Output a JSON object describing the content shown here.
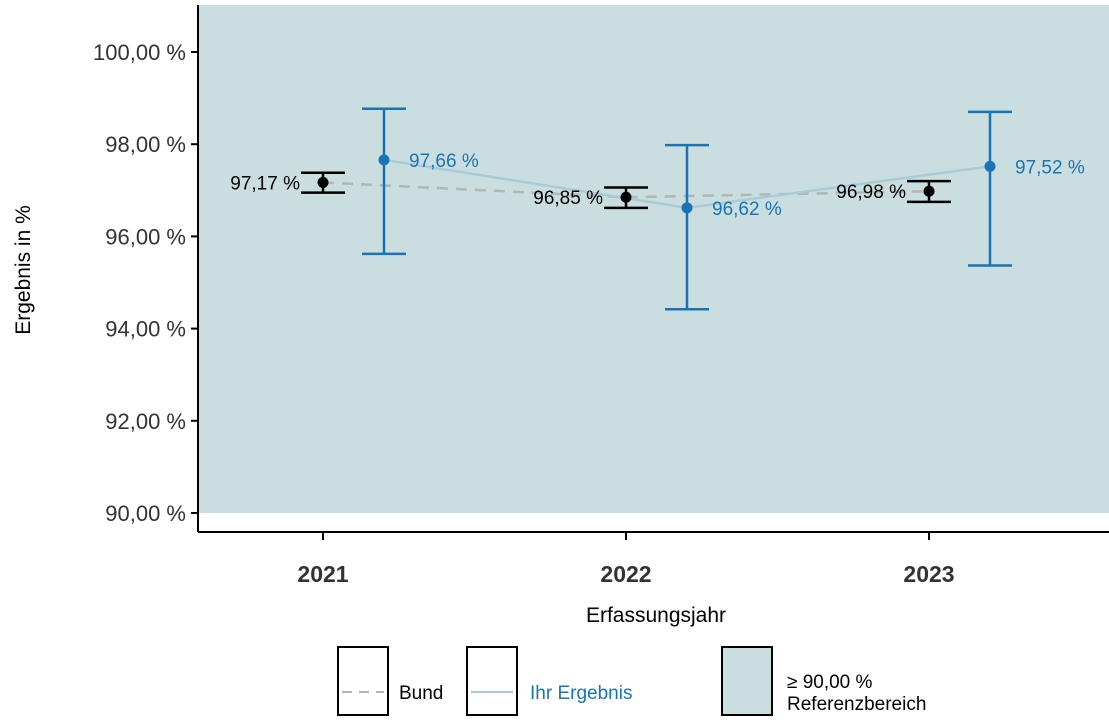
{
  "chart_data": {
    "type": "line",
    "xlabel": "Erfassungsjahr",
    "ylabel": "Ergebnis in %",
    "categories": [
      "2021",
      "2022",
      "2023"
    ],
    "ylim": [
      90,
      101
    ],
    "yticks": [
      90,
      92,
      94,
      96,
      98,
      100
    ],
    "ytick_labels": [
      "90,00 %",
      "92,00 %",
      "94,00 %",
      "96,00 %",
      "98,00 %",
      "100,00 %"
    ],
    "reference_range": {
      "min": 90,
      "label": "≥  90,00  %",
      "caption": "Referenzbereich",
      "color": "#cadedf"
    },
    "series": [
      {
        "name": "Bund",
        "style": "dashed",
        "color": "#000000",
        "line_color": "#b0b6b9",
        "values": [
          97.17,
          96.85,
          96.98
        ],
        "ci_low": [
          96.95,
          96.62,
          96.75
        ],
        "ci_high": [
          97.38,
          97.06,
          97.2
        ],
        "labels": [
          "97,17 %",
          "96,85 %",
          "96,98 %"
        ]
      },
      {
        "name": "Ihr  Ergebnis",
        "style": "solid",
        "color": "#1a73b5",
        "line_color": "#a9cbd8",
        "values": [
          97.66,
          96.62,
          97.52
        ],
        "ci_low": [
          95.62,
          94.42,
          95.37
        ],
        "ci_high": [
          98.77,
          97.98,
          98.7
        ],
        "labels": [
          "97,66 %",
          "96,62 %",
          "97,52 %"
        ]
      }
    ]
  }
}
